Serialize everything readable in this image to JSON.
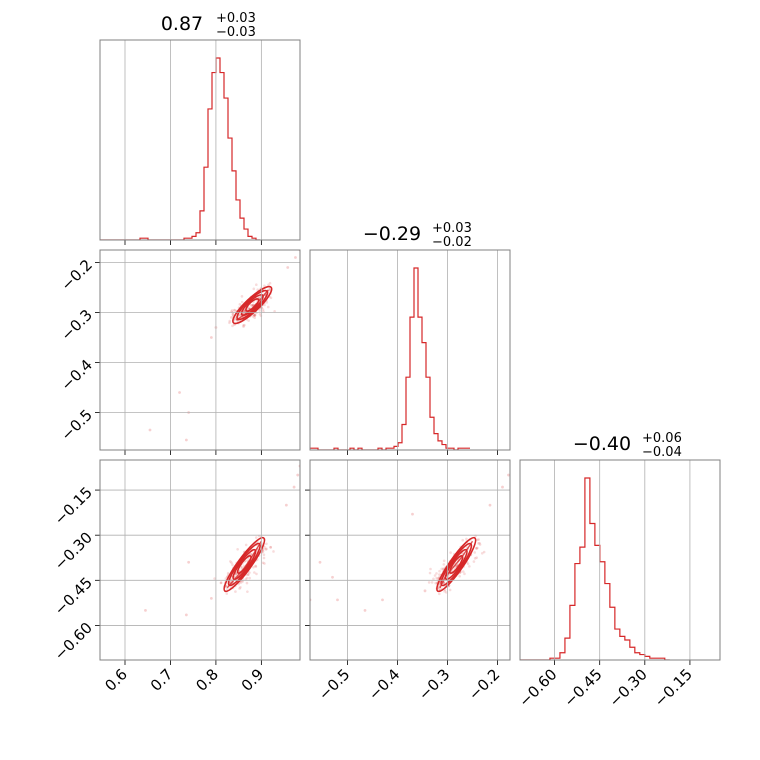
{
  "chart_data": {
    "type": "corner",
    "colors": {
      "primary": "#d62728",
      "grid": "#b0b0b0",
      "frame": "#808080"
    },
    "parameters": [
      {
        "title": {
          "value": "0.87",
          "upper": "+0.03",
          "lower": "−0.03"
        },
        "range": [
          0.545,
          0.985
        ],
        "ticks": [
          0.6,
          0.7,
          0.8,
          0.9
        ],
        "tick_labels": [
          "0.6",
          "0.7",
          "0.8",
          "0.9"
        ]
      },
      {
        "title": {
          "value": "−0.29",
          "upper": "+0.03",
          "lower": "−0.02"
        },
        "range": [
          -0.575,
          -0.175
        ],
        "ticks": [
          -0.5,
          -0.4,
          -0.3,
          -0.2
        ],
        "tick_labels": [
          "−0.5",
          "−0.4",
          "−0.3",
          "−0.2"
        ]
      },
      {
        "title": {
          "value": "−0.40",
          "upper": "+0.06",
          "lower": "−0.04"
        },
        "range": [
          -0.715,
          -0.05
        ],
        "ticks": [
          -0.6,
          -0.45,
          -0.3,
          -0.15
        ],
        "tick_labels": [
          "−0.60",
          "−0.45",
          "−0.30",
          "−0.15"
        ]
      }
    ],
    "histograms": [
      {
        "parameter": 0,
        "bin_start": 0.545,
        "bin_width": 0.0088,
        "counts": [
          0,
          0,
          0,
          0,
          0,
          0,
          0,
          0,
          0,
          0,
          1,
          1,
          0,
          0,
          0,
          0,
          0,
          0,
          0,
          0,
          0,
          1,
          1,
          2,
          4,
          16,
          40,
          72,
          92,
          100,
          92,
          78,
          56,
          38,
          22,
          12,
          6,
          2,
          1,
          0
        ]
      },
      {
        "parameter": 1,
        "bin_start": -0.575,
        "bin_width": 0.008,
        "counts": [
          1,
          1,
          0,
          0,
          0,
          0,
          1,
          0,
          0,
          0,
          1,
          0,
          1,
          0,
          0,
          0,
          0,
          1,
          0,
          1,
          1,
          2,
          4,
          14,
          40,
          73,
          100,
          73,
          59,
          40,
          18,
          9,
          5,
          3,
          1,
          1,
          0,
          1,
          1,
          1
        ]
      },
      {
        "parameter": 2,
        "bin_start": -0.715,
        "bin_width": 0.0166,
        "counts": [
          0,
          0,
          0,
          0,
          0,
          0,
          1,
          1,
          4,
          12,
          30,
          53,
          62,
          100,
          75,
          63,
          54,
          42,
          29,
          17,
          13,
          11,
          7,
          4,
          3,
          2,
          1,
          1,
          1,
          0
        ]
      }
    ],
    "scatter_panels": [
      {
        "x_param": 0,
        "y_param": 1,
        "contour_centers": {
          "x": [
            0.845,
            0.862,
            0.878,
            0.895,
            0.915
          ],
          "y": [
            -0.315,
            -0.305,
            -0.293,
            -0.277,
            -0.255
          ]
        },
        "outliers": [
          [
            0.72,
            -0.46
          ],
          [
            0.735,
            -0.555
          ],
          [
            0.655,
            -0.535
          ],
          [
            0.74,
            -0.5
          ],
          [
            0.79,
            -0.35
          ],
          [
            0.985,
            -0.175
          ],
          [
            0.975,
            -0.19
          ],
          [
            0.958,
            -0.21
          ],
          [
            0.8,
            -0.33
          ]
        ]
      },
      {
        "x_param": 0,
        "y_param": 2,
        "contour_centers": {
          "x": [
            0.825,
            0.845,
            0.862,
            0.88,
            0.9
          ],
          "y": [
            -0.475,
            -0.44,
            -0.41,
            -0.37,
            -0.32
          ]
        },
        "outliers": [
          [
            0.645,
            -0.55
          ],
          [
            0.735,
            -0.565
          ],
          [
            0.74,
            -0.39
          ],
          [
            0.79,
            -0.51
          ],
          [
            0.955,
            -0.2
          ],
          [
            0.972,
            -0.14
          ],
          [
            0.98,
            -0.1
          ],
          [
            0.985,
            -0.07
          ]
        ]
      },
      {
        "x_param": 1,
        "y_param": 2,
        "contour_centers": {
          "x": [
            -0.315,
            -0.305,
            -0.29,
            -0.27,
            -0.25
          ],
          "y": [
            -0.475,
            -0.44,
            -0.41,
            -0.37,
            -0.32
          ]
        },
        "outliers": [
          [
            -0.575,
            -0.515
          ],
          [
            -0.52,
            -0.515
          ],
          [
            -0.43,
            -0.515
          ],
          [
            -0.465,
            -0.55
          ],
          [
            -0.37,
            -0.23
          ],
          [
            -0.345,
            -0.485
          ],
          [
            -0.555,
            -0.39
          ],
          [
            -0.215,
            -0.2
          ],
          [
            -0.19,
            -0.14
          ],
          [
            -0.178,
            -0.1
          ],
          [
            -0.53,
            -0.44
          ]
        ]
      }
    ]
  }
}
